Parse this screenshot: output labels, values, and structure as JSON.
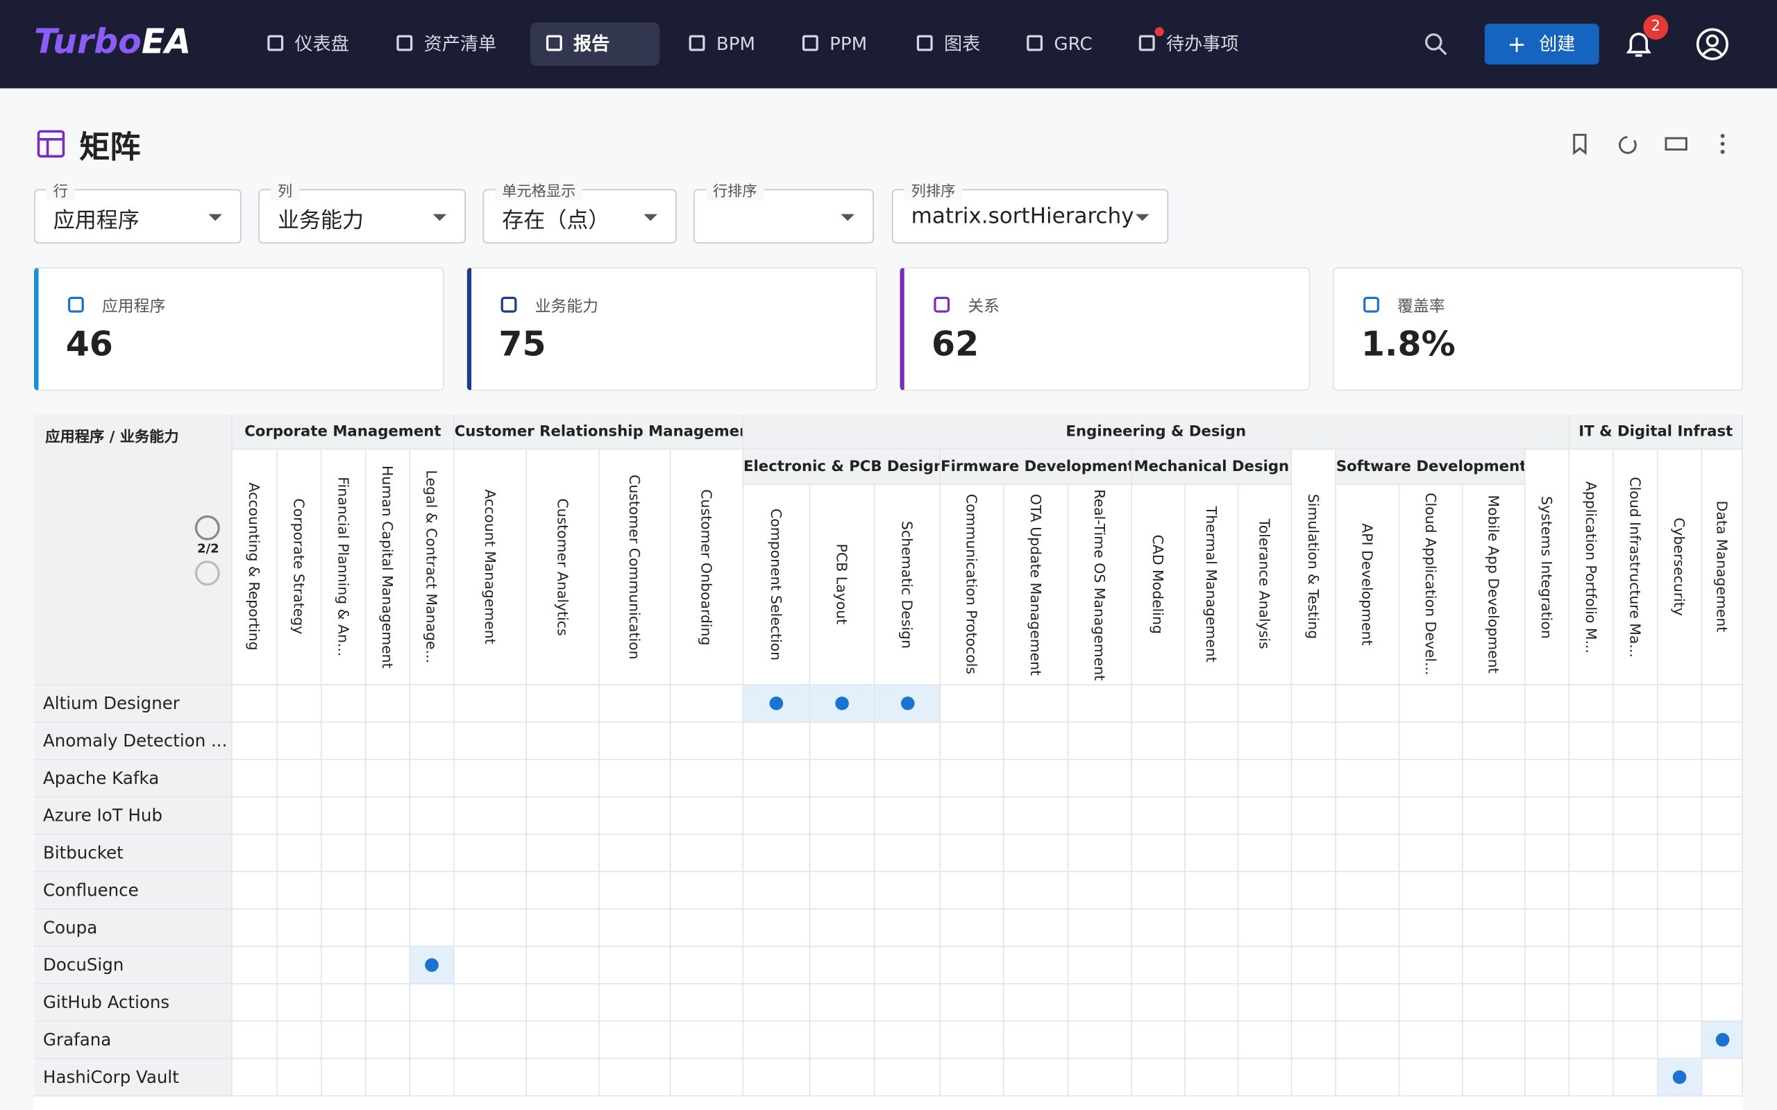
{
  "nav": {
    "logo": {
      "part1": "Turbo",
      "part2": "EA"
    },
    "items": [
      "仪表盘",
      "资产清单",
      "报告",
      "BPM",
      "PPM",
      "图表",
      "GRC",
      "待办事项"
    ],
    "create": "创建",
    "badge": "2"
  },
  "page": {
    "title": "矩阵",
    "filters": [
      {
        "label": "行",
        "value": "应用程序"
      },
      {
        "label": "列",
        "value": "业务能力"
      },
      {
        "label": "单元格显示",
        "value": "存在（点）"
      },
      {
        "label": "行排序"
      },
      {
        "label": "列排序",
        "value": "matrix.sortHierarchy"
      }
    ],
    "stats": [
      {
        "label": "应用程序",
        "value": "46"
      },
      {
        "label": "业务能力",
        "value": "75"
      },
      {
        "label": "关系",
        "value": "62"
      },
      {
        "label": "覆盖率",
        "value": "1.8%"
      }
    ],
    "matrix": {
      "corner": "应用程序 / 业务能力",
      "level": "2/2",
      "groups": [
        {
          "name": "Corporate Management",
          "items": [
            "Accounting & Reporting",
            "Corporate Strategy",
            "Financial Planning & An...",
            "Human Capital Management",
            "Legal & Contract Manage..."
          ]
        },
        {
          "name": "Customer Relationship Management",
          "items": [
            "Account Management",
            "Customer Analytics",
            "Customer Communication",
            "Customer Onboarding"
          ]
        },
        {
          "name": "Engineering & Design",
          "items": [
            {
              "name": "Electronic & PCB Design",
              "columns": [
                "Component Selection",
                "PCB Layout",
                "Schematic Design"
              ]
            },
            {
              "name": "Firmware Development",
              "columns": [
                "Communication Protocols",
                "OTA Update Management",
                "Real-Time OS Management"
              ]
            },
            {
              "name": "Mechanical Design",
              "columns": [
                "CAD Modeling",
                "Thermal Management",
                "Tolerance Analysis"
              ]
            },
            "Simulation & Testing",
            {
              "name": "Software Development",
              "columns": [
                "API Development",
                "Cloud Application Devel...",
                "Mobile App Development"
              ]
            },
            "Systems Integration"
          ]
        },
        {
          "name": "IT & Digital Infrast",
          "items": [
            "Application Portfolio M...",
            "Cloud Infrastructure Ma...",
            "Cybersecurity",
            "Data Management"
          ]
        }
      ],
      "rows": [
        {
          "name": "Altium Designer",
          "links": [
            "Component Selection",
            "PCB Layout",
            "Schematic Design"
          ]
        },
        {
          "name": "Anomaly Detection ..."
        },
        {
          "name": "Apache Kafka"
        },
        {
          "name": "Azure IoT Hub"
        },
        {
          "name": "Bitbucket"
        },
        {
          "name": "Confluence"
        },
        {
          "name": "Coupa"
        },
        {
          "name": "DocuSign",
          "links": [
            "Legal & Contract Manage..."
          ]
        },
        {
          "name": "GitHub Actions"
        },
        {
          "name": "Grafana",
          "links": [
            "Data Management"
          ]
        },
        {
          "name": "HashiCorp Vault",
          "links": [
            "Cybersecurity"
          ]
        }
      ]
    }
  }
}
